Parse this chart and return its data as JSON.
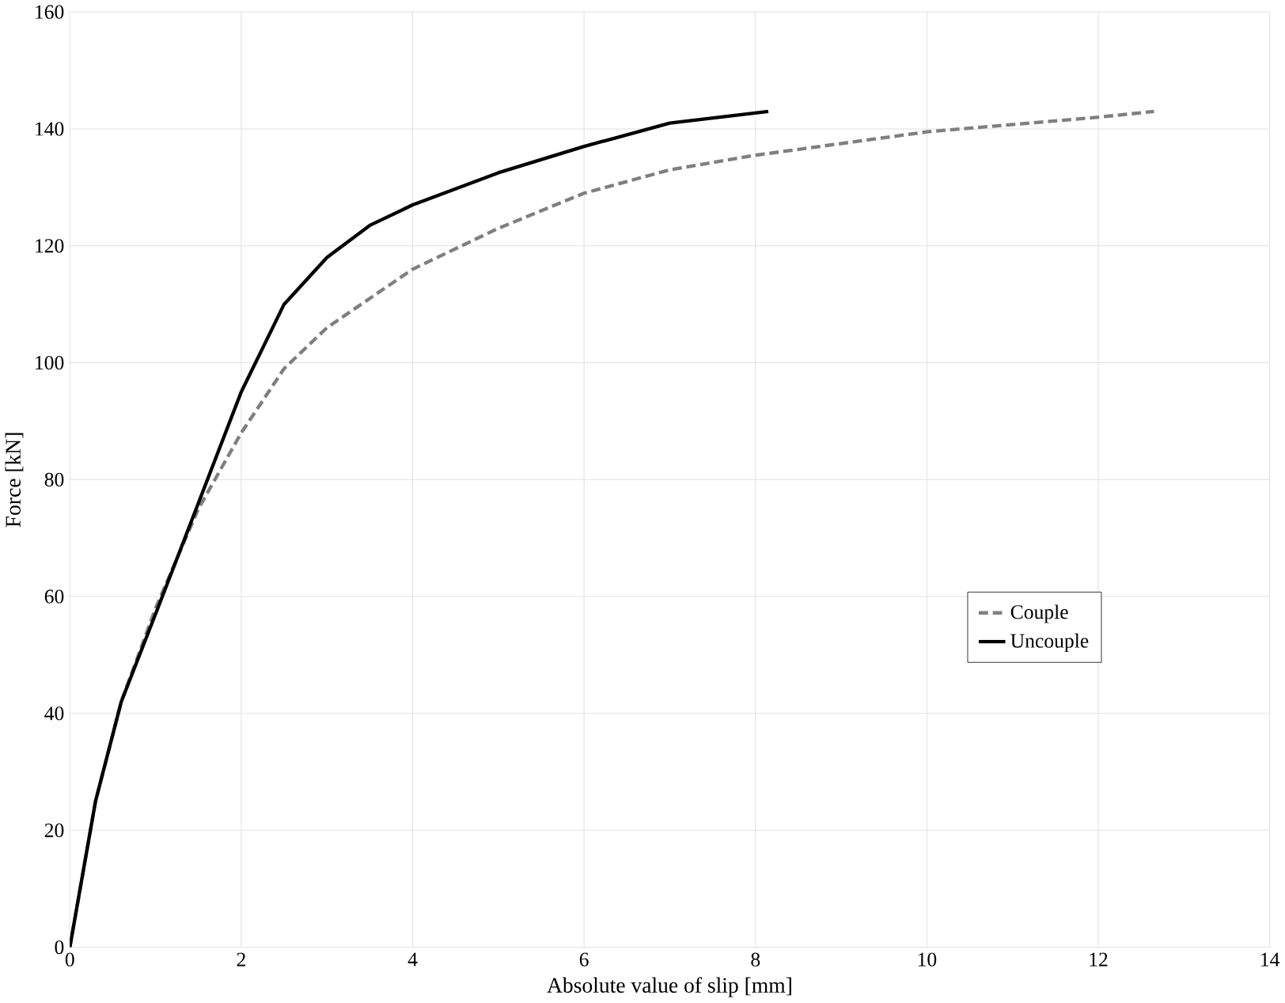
{
  "chart_data": {
    "type": "line",
    "xlabel": "Absolute value of slip [mm]",
    "ylabel": "Force [kN]",
    "xlim": [
      0,
      14
    ],
    "ylim": [
      0,
      160
    ],
    "xticks": [
      0,
      2,
      4,
      6,
      8,
      10,
      12,
      14
    ],
    "yticks": [
      0,
      20,
      40,
      60,
      80,
      100,
      120,
      140,
      160
    ],
    "grid": true,
    "legend": "right",
    "marker": "none",
    "series": [
      {
        "name": "Couple",
        "color": "#7f7f7f",
        "line_style": "dashed",
        "x": [
          0,
          0.3,
          0.6,
          1,
          1.5,
          2,
          2.5,
          3,
          4,
          5,
          6,
          7,
          8,
          10,
          12,
          12.65
        ],
        "values": [
          0,
          25,
          42,
          58,
          75,
          88,
          99,
          106,
          116,
          123,
          129,
          133,
          135.5,
          139.5,
          142,
          143
        ]
      },
      {
        "name": "Uncouple",
        "color": "#000000",
        "line_style": "solid",
        "x": [
          0,
          0.3,
          0.6,
          1,
          1.5,
          2,
          2.5,
          3,
          3.5,
          4,
          5,
          6,
          7,
          8.15
        ],
        "values": [
          0,
          25,
          42,
          57,
          76,
          95,
          110,
          118,
          123.5,
          127,
          132.5,
          137,
          141,
          143
        ]
      }
    ]
  }
}
